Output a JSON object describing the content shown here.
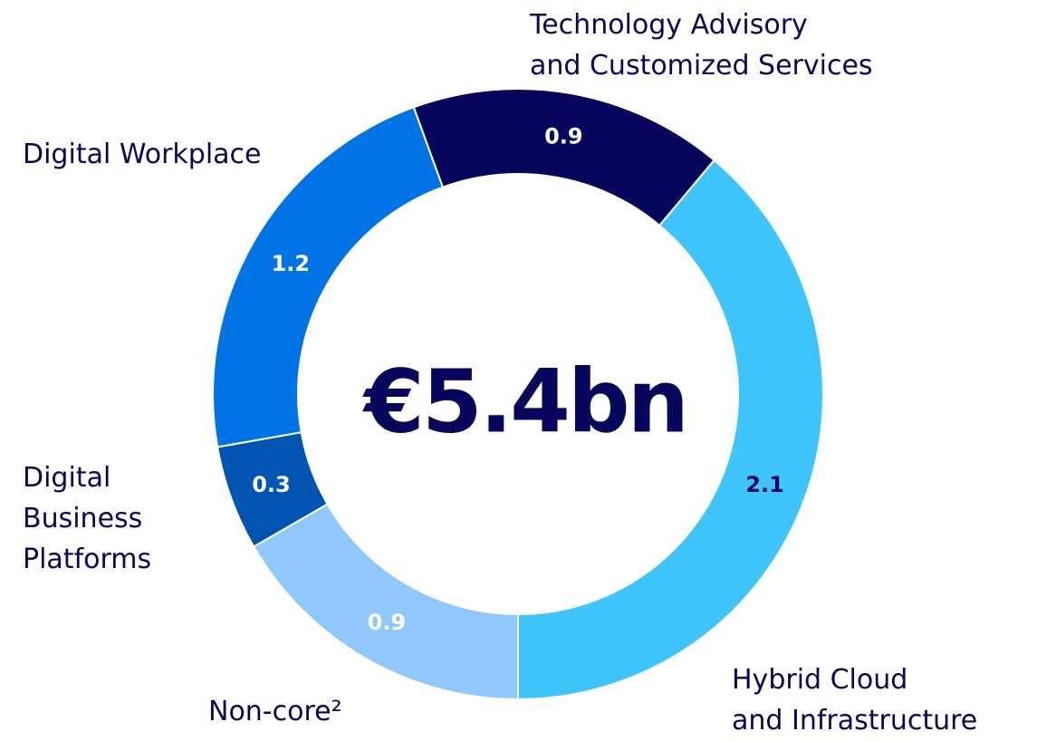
{
  "chart_data": {
    "type": "donut",
    "center_label": "€5.4bn",
    "categories": [
      "Technology Advisory\nand Customized Services",
      "Hybrid Cloud\nand Infrastructure",
      "Non-core²",
      "Digital\nBusiness\nPlatforms",
      "Digital Workplace"
    ],
    "values": [
      0.9,
      2.1,
      0.9,
      0.3,
      1.2
    ],
    "colors": [
      "#07065c",
      "#40c5fb",
      "#91c8fb",
      "#0055b3",
      "#0074e4"
    ],
    "value_label_colors": [
      "#ffffff",
      "#07065c",
      "#ffffff",
      "#ffffff",
      "#ffffff"
    ]
  }
}
